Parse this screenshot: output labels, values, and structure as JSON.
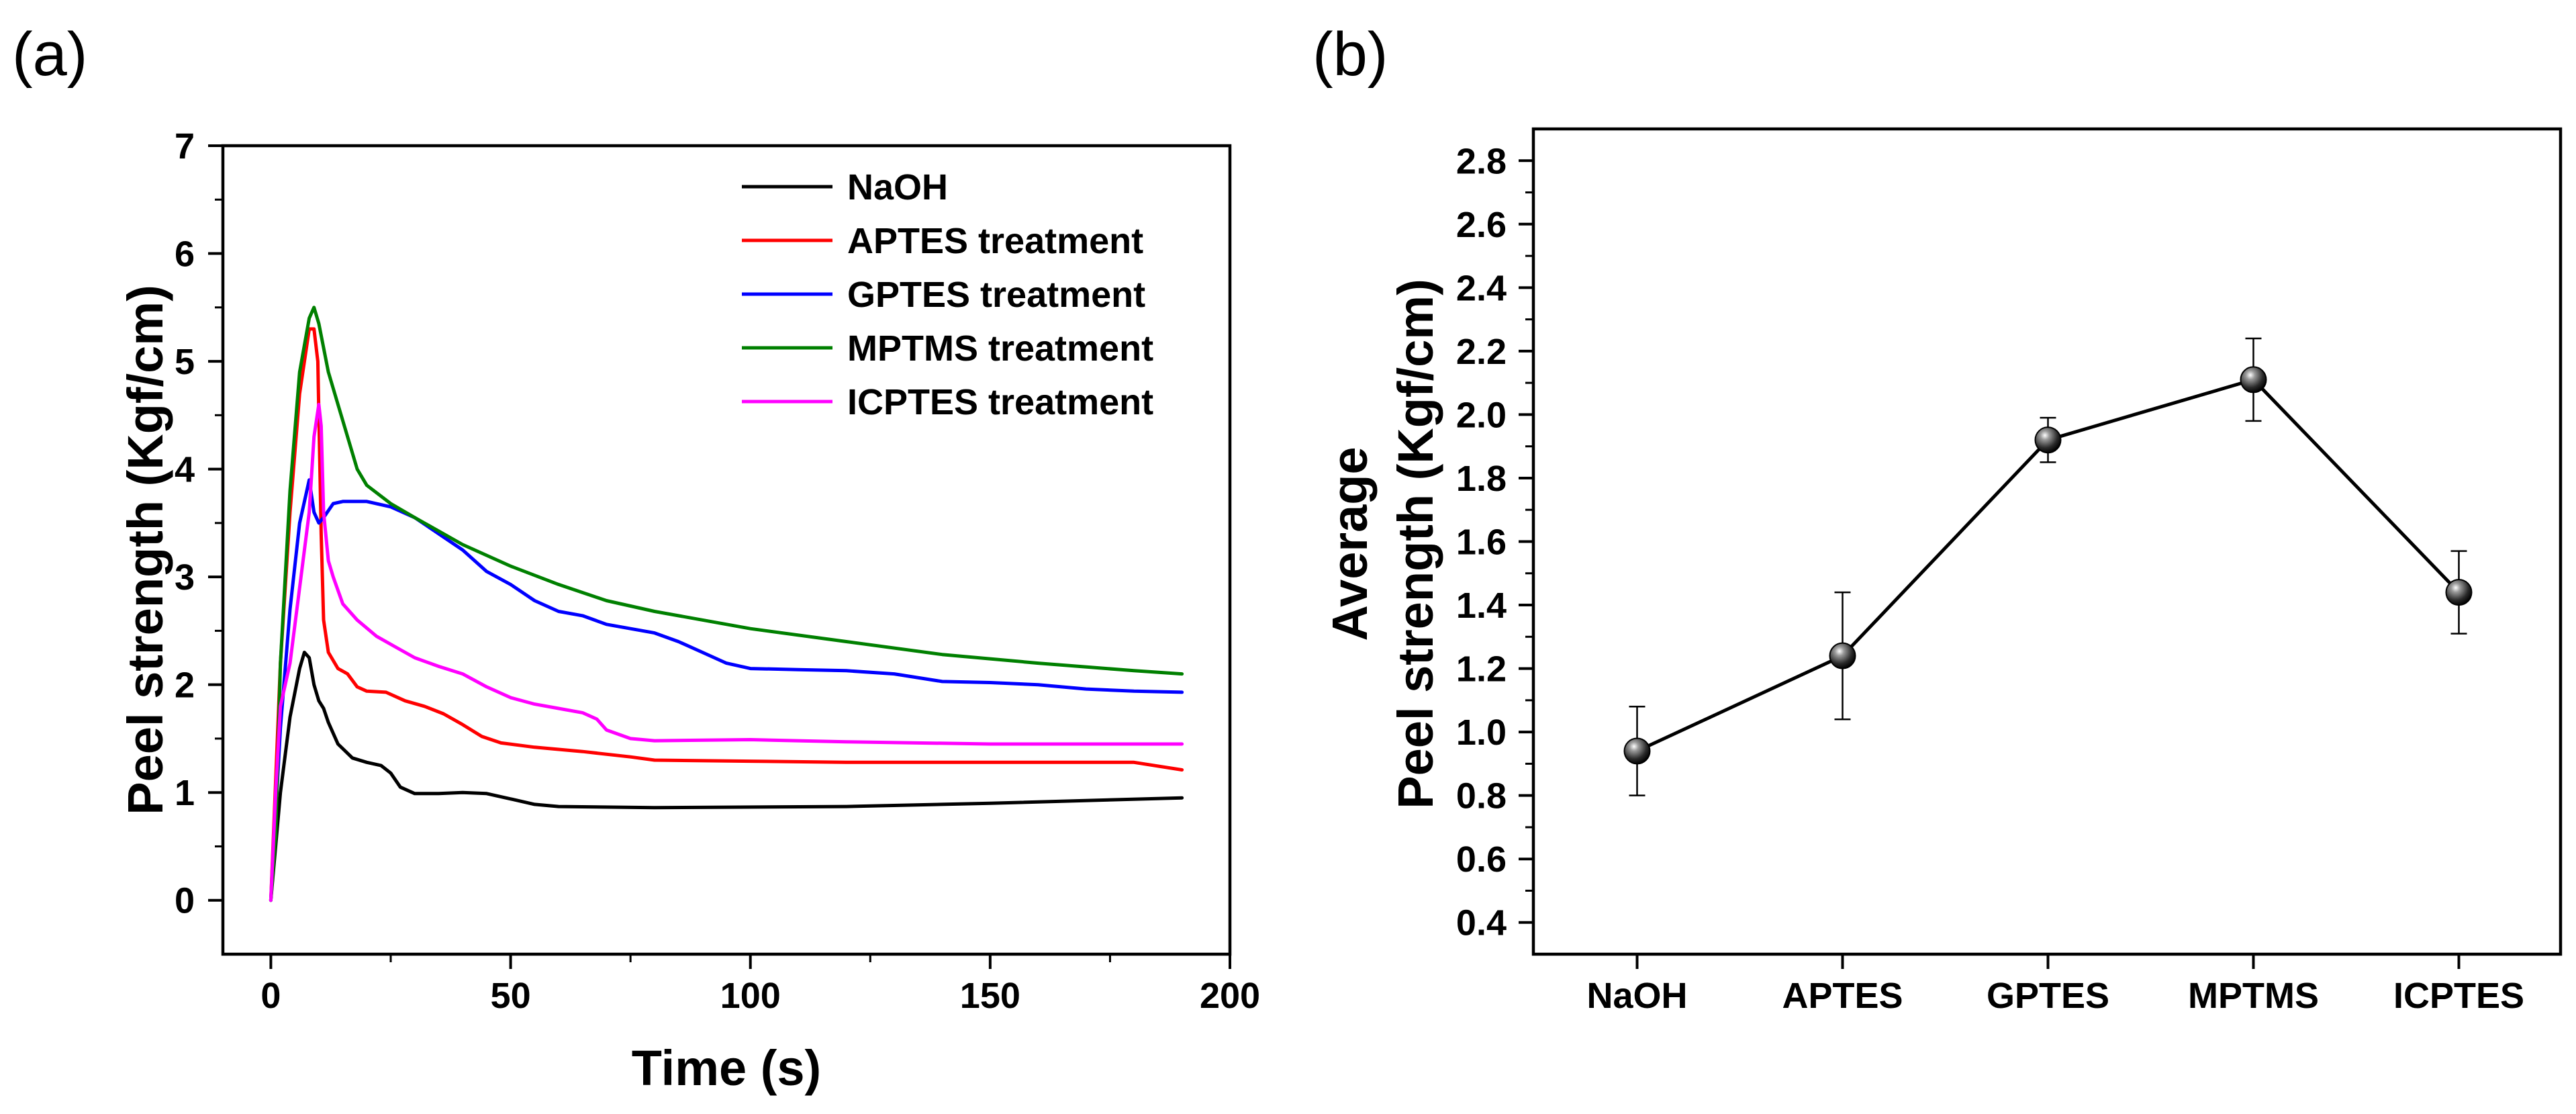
{
  "chart_data": [
    {
      "panel_label": "(a)",
      "type": "line",
      "xlabel": "Time (s)",
      "ylabel": "Peel strength (Kgf/cm)",
      "xlim": [
        -10,
        200
      ],
      "ylim": [
        -0.5,
        7
      ],
      "xticks": [
        0,
        50,
        100,
        150,
        200
      ],
      "yticks": [
        0,
        1,
        2,
        3,
        4,
        5,
        6,
        7
      ],
      "legend_position": "top-right",
      "series": [
        {
          "name": "NaOH",
          "color": "#000000",
          "points": [
            [
              0,
              0
            ],
            [
              2,
              1.0
            ],
            [
              4,
              1.7
            ],
            [
              6,
              2.15
            ],
            [
              7,
              2.3
            ],
            [
              8,
              2.25
            ],
            [
              9,
              2.0
            ],
            [
              10,
              1.85
            ],
            [
              11,
              1.78
            ],
            [
              12,
              1.65
            ],
            [
              14,
              1.45
            ],
            [
              17,
              1.32
            ],
            [
              20,
              1.28
            ],
            [
              23,
              1.25
            ],
            [
              25,
              1.18
            ],
            [
              27,
              1.05
            ],
            [
              30,
              0.99
            ],
            [
              35,
              0.99
            ],
            [
              40,
              1.0
            ],
            [
              45,
              0.99
            ],
            [
              50,
              0.94
            ],
            [
              55,
              0.89
            ],
            [
              60,
              0.87
            ],
            [
              80,
              0.86
            ],
            [
              120,
              0.87
            ],
            [
              150,
              0.9
            ],
            [
              190,
              0.95
            ]
          ]
        },
        {
          "name": "APTES treatment",
          "color": "#ff0000",
          "points": [
            [
              0,
              0
            ],
            [
              2,
              2.2
            ],
            [
              4,
              3.6
            ],
            [
              6,
              4.7
            ],
            [
              8,
              5.3
            ],
            [
              9,
              5.3
            ],
            [
              9.8,
              5.0
            ],
            [
              10.5,
              3.4
            ],
            [
              11,
              2.6
            ],
            [
              12,
              2.3
            ],
            [
              14,
              2.15
            ],
            [
              16,
              2.1
            ],
            [
              18,
              1.98
            ],
            [
              20,
              1.94
            ],
            [
              24,
              1.93
            ],
            [
              28,
              1.85
            ],
            [
              32,
              1.8
            ],
            [
              36,
              1.73
            ],
            [
              40,
              1.63
            ],
            [
              44,
              1.52
            ],
            [
              48,
              1.46
            ],
            [
              55,
              1.42
            ],
            [
              65,
              1.38
            ],
            [
              75,
              1.33
            ],
            [
              80,
              1.3
            ],
            [
              100,
              1.29
            ],
            [
              120,
              1.28
            ],
            [
              150,
              1.28
            ],
            [
              180,
              1.28
            ],
            [
              190,
              1.21
            ]
          ]
        },
        {
          "name": "GPTES treatment",
          "color": "#0000ff",
          "points": [
            [
              0,
              0
            ],
            [
              2,
              1.6
            ],
            [
              4,
              2.7
            ],
            [
              6,
              3.5
            ],
            [
              8,
              3.9
            ],
            [
              9,
              3.6
            ],
            [
              10,
              3.5
            ],
            [
              11,
              3.55
            ],
            [
              13,
              3.68
            ],
            [
              15,
              3.7
            ],
            [
              20,
              3.7
            ],
            [
              25,
              3.65
            ],
            [
              30,
              3.55
            ],
            [
              35,
              3.4
            ],
            [
              40,
              3.25
            ],
            [
              45,
              3.05
            ],
            [
              50,
              2.93
            ],
            [
              55,
              2.78
            ],
            [
              60,
              2.68
            ],
            [
              65,
              2.64
            ],
            [
              70,
              2.56
            ],
            [
              75,
              2.52
            ],
            [
              80,
              2.48
            ],
            [
              85,
              2.4
            ],
            [
              90,
              2.3
            ],
            [
              95,
              2.2
            ],
            [
              100,
              2.15
            ],
            [
              110,
              2.14
            ],
            [
              120,
              2.13
            ],
            [
              130,
              2.1
            ],
            [
              140,
              2.03
            ],
            [
              150,
              2.02
            ],
            [
              160,
              2.0
            ],
            [
              170,
              1.96
            ],
            [
              180,
              1.94
            ],
            [
              190,
              1.93
            ]
          ]
        },
        {
          "name": "MPTMS treatment",
          "color": "#008000",
          "points": [
            [
              0,
              0
            ],
            [
              1,
              0.6
            ],
            [
              2,
              2.2
            ],
            [
              4,
              3.8
            ],
            [
              6,
              4.9
            ],
            [
              8,
              5.4
            ],
            [
              9,
              5.5
            ],
            [
              10,
              5.35
            ],
            [
              12,
              4.9
            ],
            [
              14,
              4.6
            ],
            [
              16,
              4.3
            ],
            [
              18,
              4.0
            ],
            [
              20,
              3.85
            ],
            [
              25,
              3.68
            ],
            [
              30,
              3.55
            ],
            [
              40,
              3.3
            ],
            [
              50,
              3.1
            ],
            [
              60,
              2.93
            ],
            [
              70,
              2.78
            ],
            [
              80,
              2.68
            ],
            [
              100,
              2.52
            ],
            [
              120,
              2.4
            ],
            [
              140,
              2.28
            ],
            [
              160,
              2.2
            ],
            [
              180,
              2.13
            ],
            [
              190,
              2.1
            ]
          ]
        },
        {
          "name": "ICPTES treatment",
          "color": "#ff00ff",
          "points": [
            [
              0,
              0
            ],
            [
              1,
              1.0
            ],
            [
              2,
              1.8
            ],
            [
              4,
              2.2
            ],
            [
              6,
              2.9
            ],
            [
              8,
              3.6
            ],
            [
              9,
              4.3
            ],
            [
              10,
              4.6
            ],
            [
              10.5,
              4.4
            ],
            [
              11,
              3.6
            ],
            [
              12,
              3.15
            ],
            [
              13,
              3.0
            ],
            [
              15,
              2.75
            ],
            [
              18,
              2.6
            ],
            [
              22,
              2.45
            ],
            [
              26,
              2.35
            ],
            [
              30,
              2.25
            ],
            [
              35,
              2.17
            ],
            [
              40,
              2.1
            ],
            [
              45,
              1.98
            ],
            [
              50,
              1.88
            ],
            [
              55,
              1.82
            ],
            [
              60,
              1.78
            ],
            [
              65,
              1.74
            ],
            [
              68,
              1.68
            ],
            [
              70,
              1.58
            ],
            [
              75,
              1.5
            ],
            [
              80,
              1.48
            ],
            [
              100,
              1.49
            ],
            [
              120,
              1.47
            ],
            [
              150,
              1.45
            ],
            [
              190,
              1.45
            ]
          ]
        }
      ]
    },
    {
      "panel_label": "(b)",
      "type": "line",
      "xlabel": "",
      "ylabel_line1": "Average",
      "ylabel_line2": "Peel strength (Kgf/cm)",
      "categories": [
        "NaOH",
        "APTES",
        "GPTES",
        "MPTMS",
        "ICPTES"
      ],
      "values": [
        0.94,
        1.24,
        1.92,
        2.11,
        1.44
      ],
      "errors": [
        0.14,
        0.2,
        0.07,
        0.13,
        0.13
      ],
      "ylim": [
        0.3,
        2.9
      ],
      "yticks": [
        "0.4",
        "0.6",
        "0.8",
        "1.0",
        "1.2",
        "1.4",
        "1.6",
        "1.8",
        "2.0",
        "2.2",
        "2.4",
        "2.6",
        "2.8"
      ],
      "marker": "sphere",
      "color": "#000000"
    }
  ]
}
